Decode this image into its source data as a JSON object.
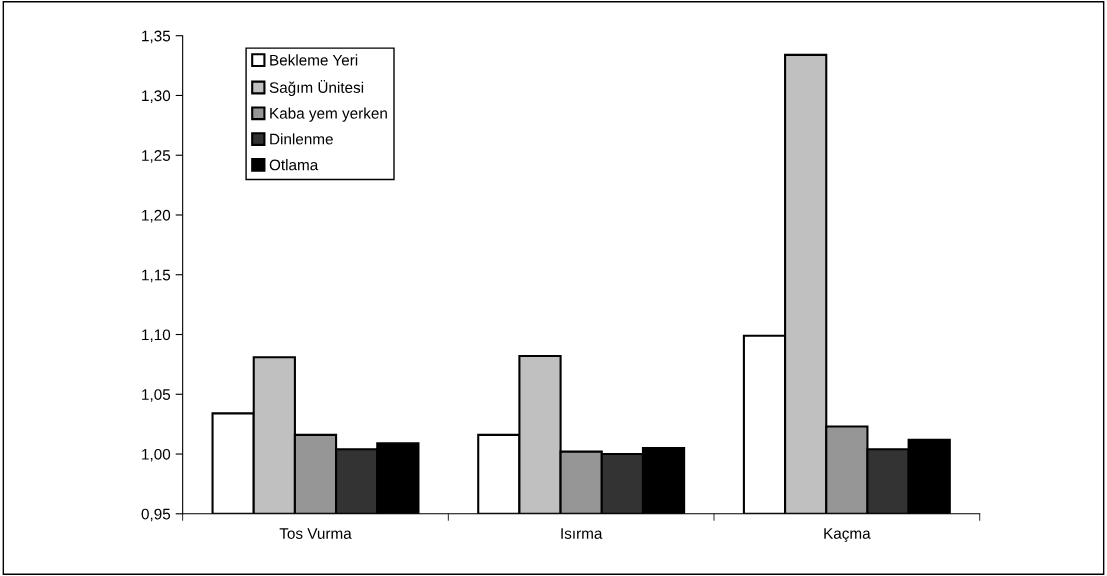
{
  "chart_data": {
    "type": "bar",
    "categories": [
      "Tos Vurma",
      "Isırma",
      "Kaçma"
    ],
    "series": [
      {
        "name": "Bekleme Yeri",
        "color": "#ffffff",
        "values": [
          1.034,
          1.016,
          1.099
        ]
      },
      {
        "name": "Sağım Ünitesi",
        "color": "#c0c0c0",
        "values": [
          1.081,
          1.082,
          1.334
        ]
      },
      {
        "name": "Kaba yem yerken",
        "color": "#969696",
        "values": [
          1.016,
          1.002,
          1.023
        ]
      },
      {
        "name": "Dinlenme",
        "color": "#333333",
        "values": [
          1.004,
          1.0,
          1.004
        ]
      },
      {
        "name": "Otlama",
        "color": "#000000",
        "values": [
          1.009,
          1.005,
          1.012
        ]
      }
    ],
    "ylim": [
      0.95,
      1.35
    ],
    "yticks": [
      {
        "value": 0.95,
        "label": "0,95"
      },
      {
        "value": 1.0,
        "label": "1,00"
      },
      {
        "value": 1.05,
        "label": "1,05"
      },
      {
        "value": 1.1,
        "label": "1,10"
      },
      {
        "value": 1.15,
        "label": "1,15"
      },
      {
        "value": 1.2,
        "label": "1,20"
      },
      {
        "value": 1.25,
        "label": "1,25"
      },
      {
        "value": 1.3,
        "label": "1,30"
      },
      {
        "value": 1.35,
        "label": "1,35"
      }
    ],
    "grid": false,
    "legend": "top left"
  }
}
